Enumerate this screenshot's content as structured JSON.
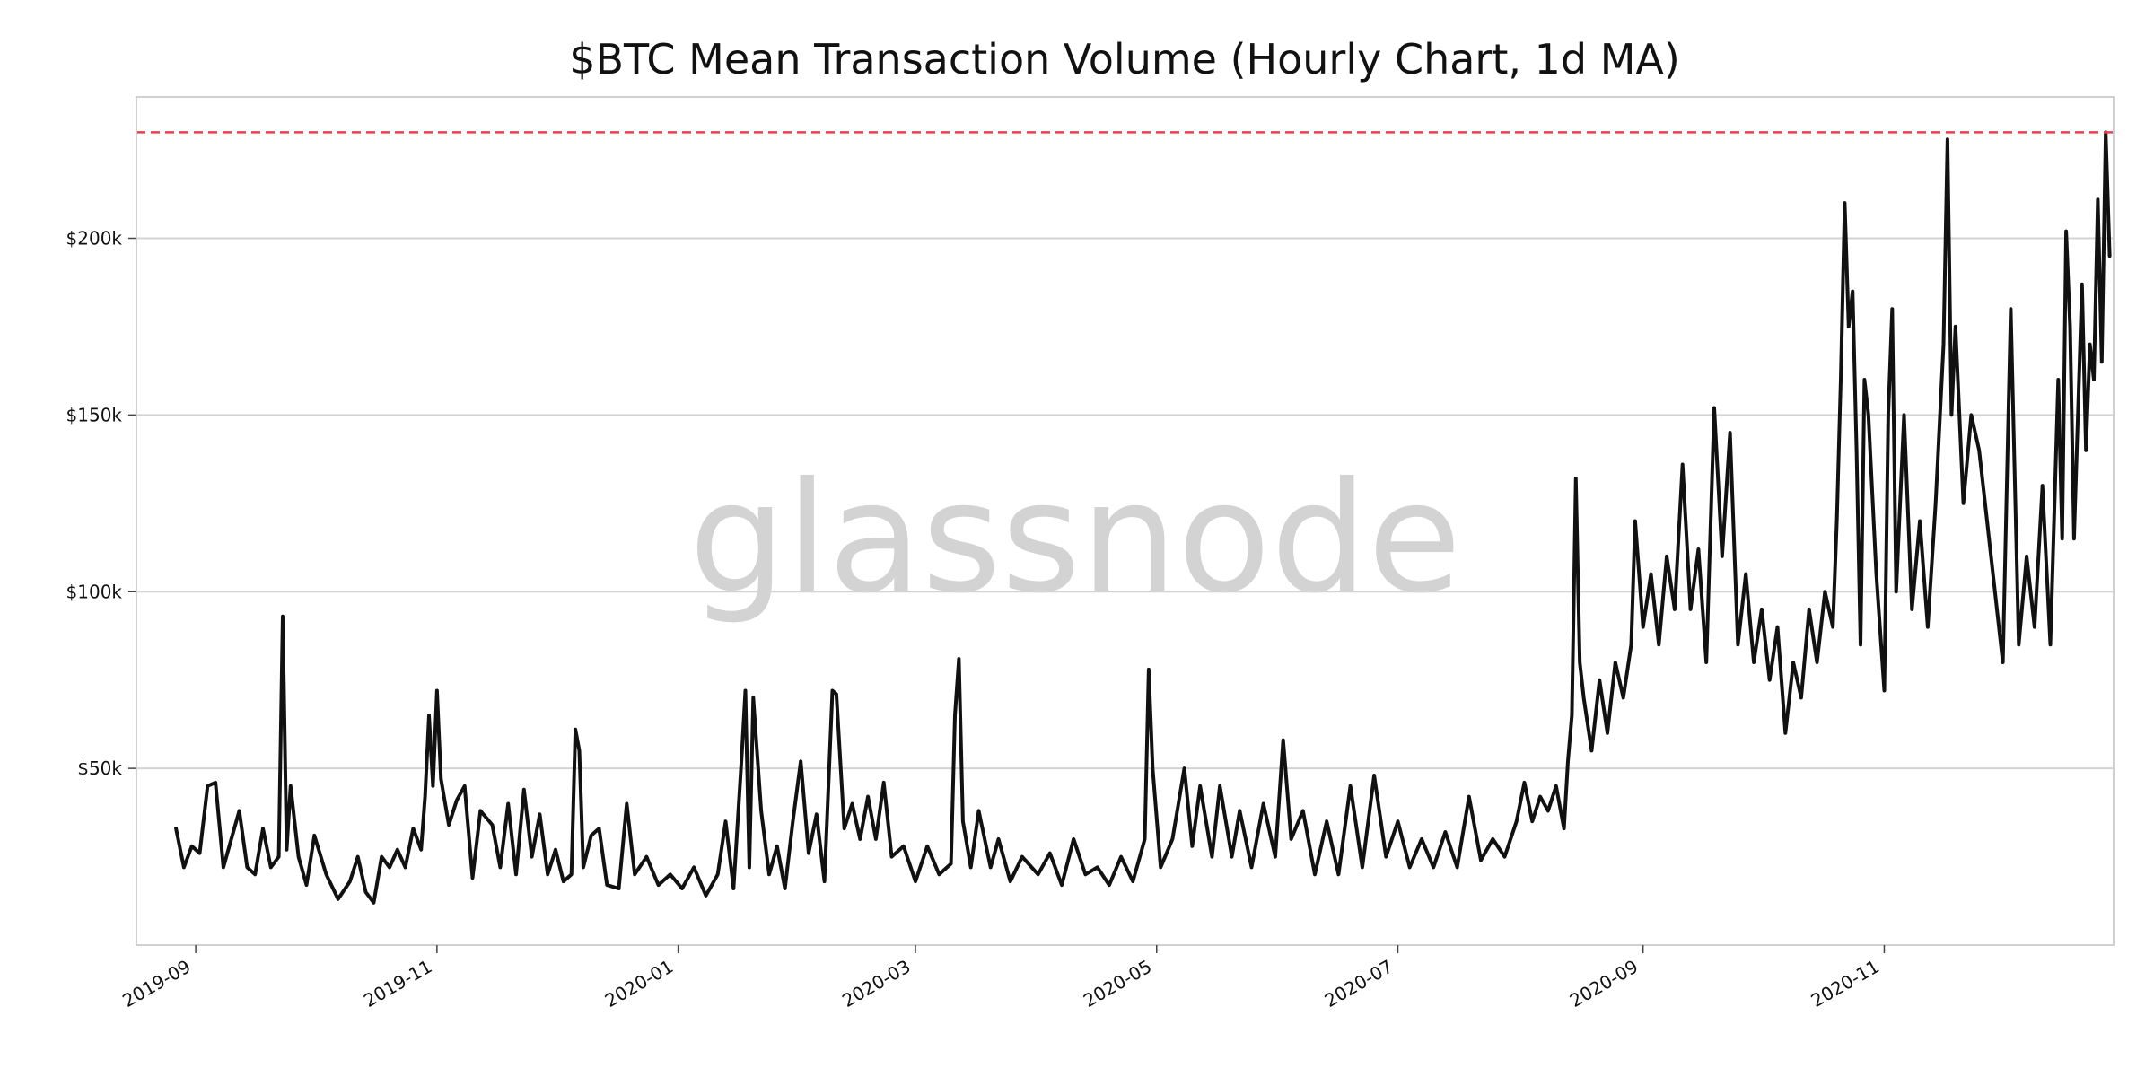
{
  "chart_data": {
    "type": "line",
    "title": "$BTC Mean Transaction Volume (Hourly Chart, 1d MA)",
    "xlabel": "",
    "ylabel": "",
    "watermark": "glassnode",
    "x_range": [
      "2019-08-17",
      "2020-12-29"
    ],
    "ylim": [
      0,
      240000
    ],
    "y_ticks": [
      {
        "value": 50000,
        "label": "$50k"
      },
      {
        "value": 100000,
        "label": "$100k"
      },
      {
        "value": 150000,
        "label": "$150k"
      },
      {
        "value": 200000,
        "label": "$200k"
      }
    ],
    "x_ticks": [
      {
        "date": "2019-09-01",
        "label": "2019-09"
      },
      {
        "date": "2019-11-01",
        "label": "2019-11"
      },
      {
        "date": "2020-01-01",
        "label": "2020-01"
      },
      {
        "date": "2020-03-01",
        "label": "2020-03"
      },
      {
        "date": "2020-05-01",
        "label": "2020-05"
      },
      {
        "date": "2020-07-01",
        "label": "2020-07"
      },
      {
        "date": "2020-09-01",
        "label": "2020-09"
      },
      {
        "date": "2020-11-01",
        "label": "2020-11"
      }
    ],
    "grid": "horizontal",
    "reference_line": {
      "value": 230000,
      "style": "dashed",
      "color": "#e8414a"
    },
    "series": [
      {
        "color": "#111111",
        "points": [
          [
            "2019-08-27",
            33000
          ],
          [
            "2019-08-29",
            22000
          ],
          [
            "2019-08-31",
            28000
          ],
          [
            "2019-09-02",
            26000
          ],
          [
            "2019-09-04",
            45000
          ],
          [
            "2019-09-06",
            46000
          ],
          [
            "2019-09-08",
            22000
          ],
          [
            "2019-09-10",
            30000
          ],
          [
            "2019-09-12",
            38000
          ],
          [
            "2019-09-14",
            22000
          ],
          [
            "2019-09-16",
            20000
          ],
          [
            "2019-09-18",
            33000
          ],
          [
            "2019-09-20",
            22000
          ],
          [
            "2019-09-22",
            25000
          ],
          [
            "2019-09-23",
            93000
          ],
          [
            "2019-09-24",
            27000
          ],
          [
            "2019-09-25",
            45000
          ],
          [
            "2019-09-27",
            25000
          ],
          [
            "2019-09-29",
            17000
          ],
          [
            "2019-10-01",
            31000
          ],
          [
            "2019-10-04",
            20000
          ],
          [
            "2019-10-07",
            13000
          ],
          [
            "2019-10-10",
            18000
          ],
          [
            "2019-10-12",
            25000
          ],
          [
            "2019-10-14",
            15000
          ],
          [
            "2019-10-16",
            12000
          ],
          [
            "2019-10-18",
            25000
          ],
          [
            "2019-10-20",
            22000
          ],
          [
            "2019-10-22",
            27000
          ],
          [
            "2019-10-24",
            22000
          ],
          [
            "2019-10-26",
            33000
          ],
          [
            "2019-10-28",
            27000
          ],
          [
            "2019-10-29",
            42000
          ],
          [
            "2019-10-30",
            65000
          ],
          [
            "2019-10-31",
            45000
          ],
          [
            "2019-11-01",
            72000
          ],
          [
            "2019-11-02",
            47000
          ],
          [
            "2019-11-04",
            34000
          ],
          [
            "2019-11-06",
            41000
          ],
          [
            "2019-11-08",
            45000
          ],
          [
            "2019-11-10",
            19000
          ],
          [
            "2019-11-12",
            38000
          ],
          [
            "2019-11-15",
            34000
          ],
          [
            "2019-11-17",
            22000
          ],
          [
            "2019-11-19",
            40000
          ],
          [
            "2019-11-21",
            20000
          ],
          [
            "2019-11-23",
            44000
          ],
          [
            "2019-11-25",
            25000
          ],
          [
            "2019-11-27",
            37000
          ],
          [
            "2019-11-29",
            20000
          ],
          [
            "2019-12-01",
            27000
          ],
          [
            "2019-12-03",
            18000
          ],
          [
            "2019-12-05",
            20000
          ],
          [
            "2019-12-06",
            61000
          ],
          [
            "2019-12-07",
            55000
          ],
          [
            "2019-12-08",
            22000
          ],
          [
            "2019-12-10",
            31000
          ],
          [
            "2019-12-12",
            33000
          ],
          [
            "2019-12-14",
            17000
          ],
          [
            "2019-12-17",
            16000
          ],
          [
            "2019-12-19",
            40000
          ],
          [
            "2019-12-21",
            20000
          ],
          [
            "2019-12-24",
            25000
          ],
          [
            "2019-12-27",
            17000
          ],
          [
            "2019-12-30",
            20000
          ],
          [
            "2020-01-02",
            16000
          ],
          [
            "2020-01-05",
            22000
          ],
          [
            "2020-01-08",
            14000
          ],
          [
            "2020-01-11",
            20000
          ],
          [
            "2020-01-13",
            35000
          ],
          [
            "2020-01-15",
            16000
          ],
          [
            "2020-01-17",
            52000
          ],
          [
            "2020-01-18",
            72000
          ],
          [
            "2020-01-19",
            22000
          ],
          [
            "2020-01-20",
            70000
          ],
          [
            "2020-01-22",
            38000
          ],
          [
            "2020-01-24",
            20000
          ],
          [
            "2020-01-26",
            28000
          ],
          [
            "2020-01-28",
            16000
          ],
          [
            "2020-01-30",
            35000
          ],
          [
            "2020-02-01",
            52000
          ],
          [
            "2020-02-03",
            26000
          ],
          [
            "2020-02-05",
            37000
          ],
          [
            "2020-02-07",
            18000
          ],
          [
            "2020-02-09",
            72000
          ],
          [
            "2020-02-10",
            71000
          ],
          [
            "2020-02-12",
            33000
          ],
          [
            "2020-02-14",
            40000
          ],
          [
            "2020-02-16",
            30000
          ],
          [
            "2020-02-18",
            42000
          ],
          [
            "2020-02-20",
            30000
          ],
          [
            "2020-02-22",
            46000
          ],
          [
            "2020-02-24",
            25000
          ],
          [
            "2020-02-27",
            28000
          ],
          [
            "2020-03-01",
            18000
          ],
          [
            "2020-03-04",
            28000
          ],
          [
            "2020-03-07",
            20000
          ],
          [
            "2020-03-10",
            23000
          ],
          [
            "2020-03-11",
            65000
          ],
          [
            "2020-03-12",
            81000
          ],
          [
            "2020-03-13",
            35000
          ],
          [
            "2020-03-15",
            22000
          ],
          [
            "2020-03-17",
            38000
          ],
          [
            "2020-03-20",
            22000
          ],
          [
            "2020-03-22",
            30000
          ],
          [
            "2020-03-25",
            18000
          ],
          [
            "2020-03-28",
            25000
          ],
          [
            "2020-04-01",
            20000
          ],
          [
            "2020-04-04",
            26000
          ],
          [
            "2020-04-07",
            17000
          ],
          [
            "2020-04-10",
            30000
          ],
          [
            "2020-04-13",
            20000
          ],
          [
            "2020-04-16",
            22000
          ],
          [
            "2020-04-19",
            17000
          ],
          [
            "2020-04-22",
            25000
          ],
          [
            "2020-04-25",
            18000
          ],
          [
            "2020-04-28",
            30000
          ],
          [
            "2020-04-29",
            78000
          ],
          [
            "2020-04-30",
            50000
          ],
          [
            "2020-05-02",
            22000
          ],
          [
            "2020-05-05",
            30000
          ],
          [
            "2020-05-08",
            50000
          ],
          [
            "2020-05-10",
            28000
          ],
          [
            "2020-05-12",
            45000
          ],
          [
            "2020-05-15",
            25000
          ],
          [
            "2020-05-17",
            45000
          ],
          [
            "2020-05-20",
            25000
          ],
          [
            "2020-05-22",
            38000
          ],
          [
            "2020-05-25",
            22000
          ],
          [
            "2020-05-28",
            40000
          ],
          [
            "2020-05-31",
            25000
          ],
          [
            "2020-06-02",
            58000
          ],
          [
            "2020-06-04",
            30000
          ],
          [
            "2020-06-07",
            38000
          ],
          [
            "2020-06-10",
            20000
          ],
          [
            "2020-06-13",
            35000
          ],
          [
            "2020-06-16",
            20000
          ],
          [
            "2020-06-19",
            45000
          ],
          [
            "2020-06-22",
            22000
          ],
          [
            "2020-06-25",
            48000
          ],
          [
            "2020-06-28",
            25000
          ],
          [
            "2020-07-01",
            35000
          ],
          [
            "2020-07-04",
            22000
          ],
          [
            "2020-07-07",
            30000
          ],
          [
            "2020-07-10",
            22000
          ],
          [
            "2020-07-13",
            32000
          ],
          [
            "2020-07-16",
            22000
          ],
          [
            "2020-07-19",
            42000
          ],
          [
            "2020-07-22",
            24000
          ],
          [
            "2020-07-25",
            30000
          ],
          [
            "2020-07-28",
            25000
          ],
          [
            "2020-07-31",
            35000
          ],
          [
            "2020-08-02",
            46000
          ],
          [
            "2020-08-04",
            35000
          ],
          [
            "2020-08-06",
            42000
          ],
          [
            "2020-08-08",
            38000
          ],
          [
            "2020-08-10",
            45000
          ],
          [
            "2020-08-12",
            33000
          ],
          [
            "2020-08-13",
            52000
          ],
          [
            "2020-08-14",
            65000
          ],
          [
            "2020-08-15",
            132000
          ],
          [
            "2020-08-16",
            80000
          ],
          [
            "2020-08-17",
            70000
          ],
          [
            "2020-08-19",
            55000
          ],
          [
            "2020-08-21",
            75000
          ],
          [
            "2020-08-23",
            60000
          ],
          [
            "2020-08-25",
            80000
          ],
          [
            "2020-08-27",
            70000
          ],
          [
            "2020-08-29",
            85000
          ],
          [
            "2020-08-30",
            120000
          ],
          [
            "2020-09-01",
            90000
          ],
          [
            "2020-09-03",
            105000
          ],
          [
            "2020-09-05",
            85000
          ],
          [
            "2020-09-07",
            110000
          ],
          [
            "2020-09-09",
            95000
          ],
          [
            "2020-09-11",
            136000
          ],
          [
            "2020-09-13",
            95000
          ],
          [
            "2020-09-15",
            112000
          ],
          [
            "2020-09-17",
            80000
          ],
          [
            "2020-09-19",
            152000
          ],
          [
            "2020-09-21",
            110000
          ],
          [
            "2020-09-23",
            145000
          ],
          [
            "2020-09-25",
            85000
          ],
          [
            "2020-09-27",
            105000
          ],
          [
            "2020-09-29",
            80000
          ],
          [
            "2020-10-01",
            95000
          ],
          [
            "2020-10-03",
            75000
          ],
          [
            "2020-10-05",
            90000
          ],
          [
            "2020-10-07",
            60000
          ],
          [
            "2020-10-09",
            80000
          ],
          [
            "2020-10-11",
            70000
          ],
          [
            "2020-10-13",
            95000
          ],
          [
            "2020-10-15",
            80000
          ],
          [
            "2020-10-17",
            100000
          ],
          [
            "2020-10-19",
            90000
          ],
          [
            "2020-10-20",
            120000
          ],
          [
            "2020-10-21",
            160000
          ],
          [
            "2020-10-22",
            210000
          ],
          [
            "2020-10-23",
            175000
          ],
          [
            "2020-10-24",
            185000
          ],
          [
            "2020-10-25",
            140000
          ],
          [
            "2020-10-26",
            85000
          ],
          [
            "2020-10-27",
            160000
          ],
          [
            "2020-10-28",
            150000
          ],
          [
            "2020-10-30",
            105000
          ],
          [
            "2020-11-01",
            72000
          ],
          [
            "2020-11-02",
            150000
          ],
          [
            "2020-11-03",
            180000
          ],
          [
            "2020-11-04",
            100000
          ],
          [
            "2020-11-06",
            150000
          ],
          [
            "2020-11-08",
            95000
          ],
          [
            "2020-11-10",
            120000
          ],
          [
            "2020-11-12",
            90000
          ],
          [
            "2020-11-14",
            125000
          ],
          [
            "2020-11-16",
            170000
          ],
          [
            "2020-11-17",
            228000
          ],
          [
            "2020-11-18",
            150000
          ],
          [
            "2020-11-19",
            175000
          ],
          [
            "2020-11-21",
            125000
          ],
          [
            "2020-11-23",
            150000
          ],
          [
            "2020-11-25",
            140000
          ],
          [
            "2020-11-27",
            120000
          ],
          [
            "2020-11-29",
            100000
          ],
          [
            "2020-12-01",
            80000
          ],
          [
            "2020-12-03",
            180000
          ],
          [
            "2020-12-05",
            85000
          ],
          [
            "2020-12-07",
            110000
          ],
          [
            "2020-12-09",
            90000
          ],
          [
            "2020-12-11",
            130000
          ],
          [
            "2020-12-13",
            85000
          ],
          [
            "2020-12-15",
            160000
          ],
          [
            "2020-12-16",
            115000
          ],
          [
            "2020-12-17",
            202000
          ],
          [
            "2020-12-18",
            175000
          ],
          [
            "2020-12-19",
            115000
          ],
          [
            "2020-12-21",
            187000
          ],
          [
            "2020-12-22",
            140000
          ],
          [
            "2020-12-23",
            170000
          ],
          [
            "2020-12-24",
            160000
          ],
          [
            "2020-12-25",
            211000
          ],
          [
            "2020-12-26",
            165000
          ],
          [
            "2020-12-27",
            230000
          ],
          [
            "2020-12-28",
            195000
          ]
        ]
      }
    ]
  }
}
